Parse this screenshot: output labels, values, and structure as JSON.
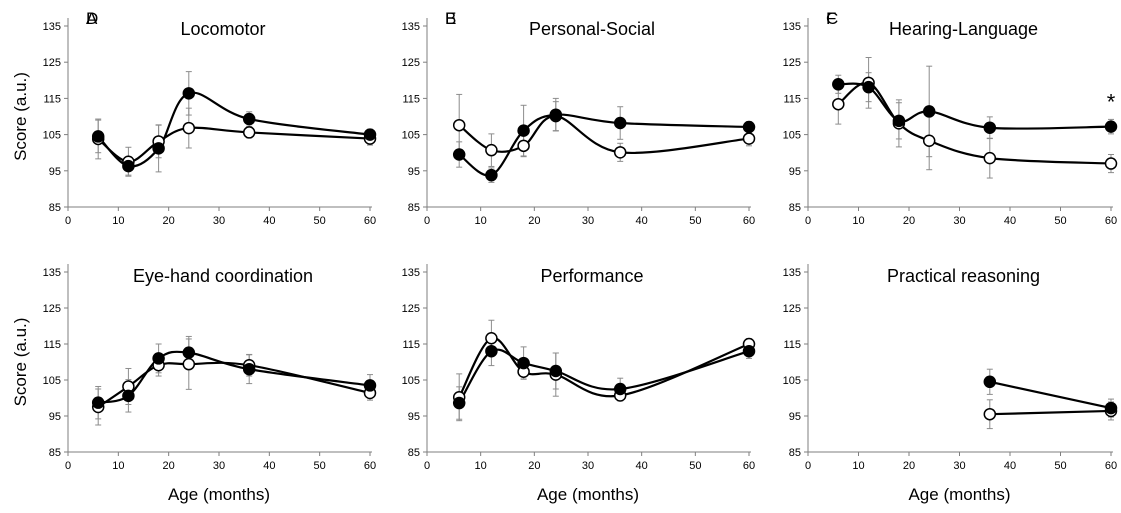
{
  "chart_data": [
    {
      "type": "line",
      "panel_letter": "A",
      "title": "Locomotor",
      "ylabel": "Score (a.u.)",
      "xlabel": "",
      "xlim": [
        0,
        60
      ],
      "ylim": [
        85,
        135
      ],
      "xticks": [
        0,
        10,
        20,
        30,
        40,
        50,
        60
      ],
      "yticks": [
        85,
        95,
        105,
        115,
        125,
        135
      ],
      "grid": false,
      "series": [
        {
          "marker": "filled",
          "x": [
            6,
            12,
            18,
            24,
            36,
            60
          ],
          "y": [
            104.5,
            96.3,
            101.2,
            116.4,
            109.3,
            105.0
          ],
          "error": [
            4.5,
            2.5,
            6.5,
            6.0,
            2.0,
            1.5
          ]
        },
        {
          "marker": "open",
          "x": [
            6,
            12,
            18,
            24,
            36,
            60
          ],
          "y": [
            103.8,
            97.5,
            103.1,
            106.8,
            105.6,
            103.9
          ],
          "error": [
            5.5,
            4.0,
            4.5,
            5.5,
            1.5,
            1.8
          ]
        }
      ],
      "annotations": []
    },
    {
      "type": "line",
      "panel_letter": "B",
      "title": "Personal-Social",
      "ylabel": "",
      "xlabel": "",
      "xlim": [
        0,
        60
      ],
      "ylim": [
        85,
        135
      ],
      "xticks": [
        0,
        10,
        20,
        30,
        40,
        50,
        60
      ],
      "yticks": [
        85,
        95,
        105,
        115,
        125,
        135
      ],
      "grid": false,
      "series": [
        {
          "marker": "filled",
          "x": [
            6,
            12,
            18,
            24,
            36,
            60
          ],
          "y": [
            99.5,
            93.8,
            106.1,
            110.5,
            108.2,
            107.1
          ],
          "error": [
            3.5,
            2.0,
            7.0,
            4.5,
            4.5,
            1.5
          ]
        },
        {
          "marker": "open",
          "x": [
            6,
            12,
            18,
            24,
            36,
            60
          ],
          "y": [
            107.6,
            100.7,
            101.9,
            110.1,
            100.1,
            103.9
          ],
          "error": [
            8.5,
            4.5,
            3.0,
            4.0,
            2.5,
            2.0
          ]
        }
      ],
      "annotations": []
    },
    {
      "type": "line",
      "panel_letter": "C",
      "title": "Hearing-Language",
      "ylabel": "",
      "xlabel": "",
      "xlim": [
        0,
        60
      ],
      "ylim": [
        85,
        135
      ],
      "xticks": [
        0,
        10,
        20,
        30,
        40,
        50,
        60
      ],
      "yticks": [
        85,
        95,
        105,
        115,
        125,
        135
      ],
      "grid": false,
      "series": [
        {
          "marker": "filled",
          "x": [
            6,
            12,
            18,
            24,
            36,
            60
          ],
          "y": [
            118.9,
            118.1,
            108.8,
            111.4,
            106.9,
            107.2
          ],
          "error": [
            2.5,
            4.0,
            5.0,
            12.5,
            3.0,
            2.0
          ]
        },
        {
          "marker": "open",
          "x": [
            6,
            12,
            18,
            24,
            36,
            60
          ],
          "y": [
            113.4,
            119.3,
            108.1,
            103.3,
            98.5,
            97.0
          ],
          "error": [
            5.5,
            7.0,
            6.5,
            8.0,
            5.5,
            2.5
          ]
        }
      ],
      "annotations": [
        {
          "text": "*",
          "x": 60,
          "y": 112.5
        }
      ]
    },
    {
      "type": "line",
      "panel_letter": "D",
      "title": "Eye-hand coordination",
      "ylabel": "Score (a.u.)",
      "xlabel": "Age (months)",
      "xlim": [
        0,
        60
      ],
      "ylim": [
        85,
        135
      ],
      "xticks": [
        0,
        10,
        20,
        30,
        40,
        50,
        60
      ],
      "yticks": [
        85,
        95,
        105,
        115,
        125,
        135
      ],
      "grid": false,
      "series": [
        {
          "marker": "filled",
          "x": [
            6,
            12,
            18,
            24,
            36,
            60
          ],
          "y": [
            98.7,
            100.6,
            111.0,
            112.6,
            108.0,
            103.5
          ],
          "error": [
            4.5,
            4.5,
            4.0,
            4.5,
            4.0,
            3.0
          ]
        },
        {
          "marker": "open",
          "x": [
            6,
            12,
            18,
            24,
            36,
            60
          ],
          "y": [
            97.5,
            103.2,
            109.1,
            109.4,
            109.1,
            101.4
          ],
          "error": [
            5.0,
            5.0,
            3.0,
            7.0,
            3.0,
            2.0
          ]
        }
      ],
      "annotations": []
    },
    {
      "type": "line",
      "panel_letter": "E",
      "title": "Performance",
      "ylabel": "",
      "xlabel": "Age (months)",
      "xlim": [
        0,
        60
      ],
      "ylim": [
        85,
        135
      ],
      "xticks": [
        0,
        10,
        20,
        30,
        40,
        50,
        60
      ],
      "yticks": [
        85,
        95,
        105,
        115,
        125,
        135
      ],
      "grid": false,
      "series": [
        {
          "marker": "filled",
          "x": [
            6,
            12,
            18,
            24,
            36,
            60
          ],
          "y": [
            98.6,
            113.0,
            109.7,
            107.5,
            102.5,
            113.0
          ],
          "error": [
            4.5,
            4.0,
            4.5,
            5.0,
            3.0,
            2.0
          ]
        },
        {
          "marker": "open",
          "x": [
            6,
            12,
            18,
            24,
            36,
            60
          ],
          "y": [
            100.2,
            116.6,
            107.3,
            106.5,
            100.7,
            115.0
          ],
          "error": [
            6.5,
            5.0,
            2.0,
            6.0,
            1.5,
            1.5
          ]
        }
      ],
      "annotations": []
    },
    {
      "type": "line",
      "panel_letter": "F",
      "title": "Practical reasoning",
      "ylabel": "",
      "xlabel": "Age (months)",
      "xlim": [
        0,
        60
      ],
      "ylim": [
        85,
        135
      ],
      "xticks": [
        0,
        10,
        20,
        30,
        40,
        50,
        60
      ],
      "yticks": [
        85,
        95,
        105,
        115,
        125,
        135
      ],
      "grid": false,
      "series": [
        {
          "marker": "filled",
          "x": [
            36,
            60
          ],
          "y": [
            104.5,
            97.2
          ],
          "error": [
            3.5,
            2.5
          ]
        },
        {
          "marker": "open",
          "x": [
            36,
            60
          ],
          "y": [
            95.5,
            96.4
          ],
          "error": [
            4.0,
            2.5
          ]
        }
      ],
      "annotations": []
    }
  ]
}
